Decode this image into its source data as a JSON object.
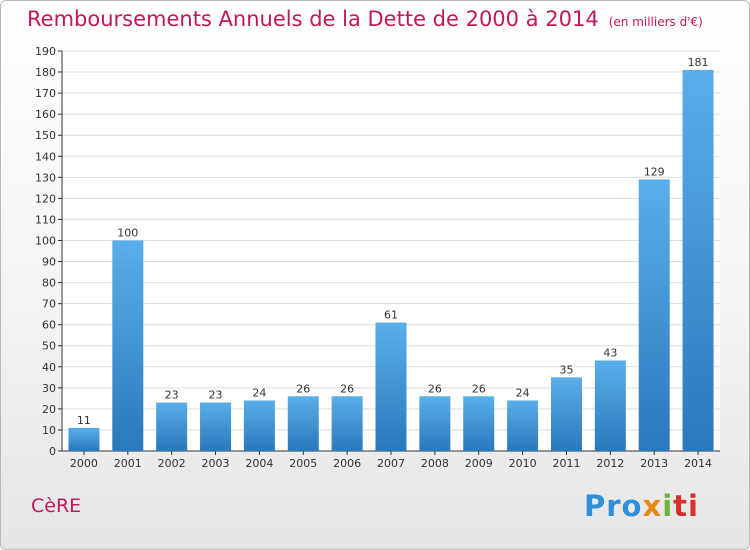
{
  "colors": {
    "title": "#c2185b",
    "bar_top": "#5aaeea",
    "bar_bottom": "#2a78bd",
    "axis": "#333333",
    "grid": "#dddddd"
  },
  "header": {
    "title": "Remboursements Annuels de la Dette de 2000 à 2014",
    "unit": "(en milliers d'€)"
  },
  "footer": {
    "commune": "CèRE",
    "logo_parts": [
      "Pro",
      "x",
      "i",
      "ti"
    ]
  },
  "chart_data": {
    "type": "bar",
    "title": "Remboursements Annuels de la Dette de 2000 à 2014",
    "xlabel": "",
    "ylabel": "",
    "categories": [
      "2000",
      "2001",
      "2002",
      "2003",
      "2004",
      "2005",
      "2006",
      "2007",
      "2008",
      "2009",
      "2010",
      "2011",
      "2012",
      "2013",
      "2014"
    ],
    "values": [
      11,
      100,
      23,
      23,
      24,
      26,
      26,
      61,
      26,
      26,
      24,
      35,
      43,
      129,
      181
    ],
    "ylim": [
      0,
      190
    ],
    "ytick_step": 10,
    "grid": true,
    "data_labels": true
  }
}
